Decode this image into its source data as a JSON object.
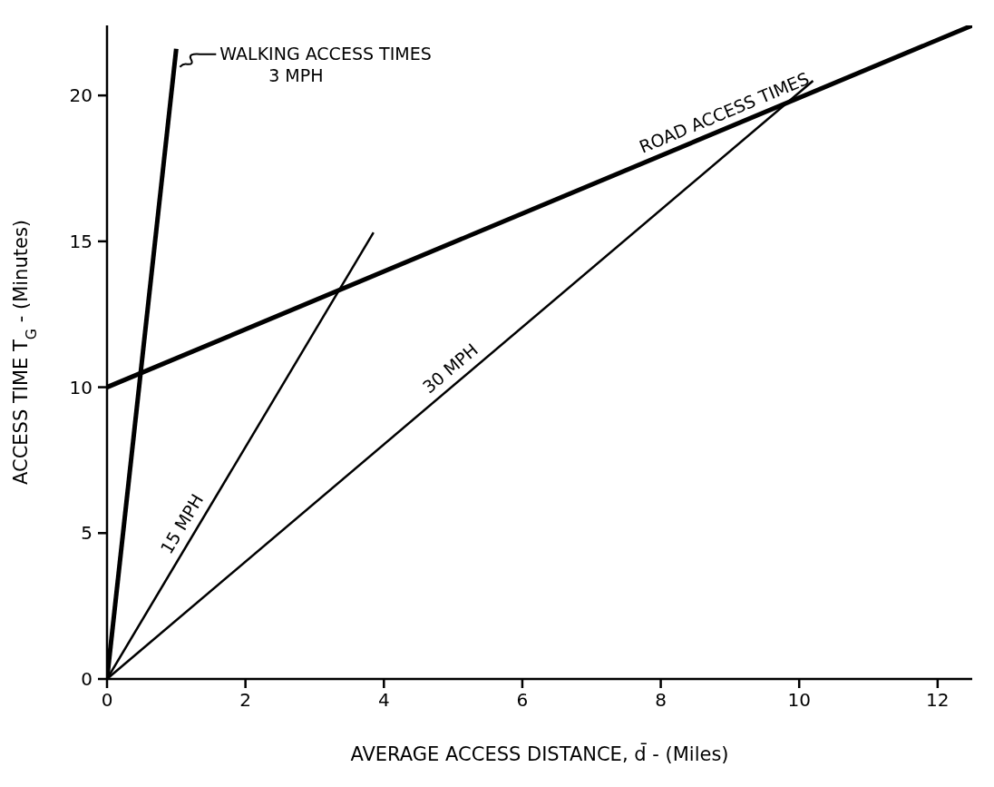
{
  "chart_data": {
    "type": "line",
    "xlabel": "AVERAGE ACCESS DISTANCE, d̄ - (Miles)",
    "ylabel": "ACCESS TIME T$_{G}$ - (Minutes)",
    "xlim": [
      0,
      12.5
    ],
    "ylim": [
      0,
      22.4
    ],
    "xticks": [
      0,
      2,
      4,
      6,
      8,
      10,
      12
    ],
    "yticks": [
      0,
      5,
      10,
      15,
      20
    ],
    "series": [
      {
        "name": "WALKING ACCESS TIMES\n3 MPH",
        "color": "#000000",
        "x": [
          0,
          1
        ],
        "values": [
          0,
          21.6
        ]
      },
      {
        "name": "15 MPH",
        "color": "#000000",
        "x": [
          0,
          3.85
        ],
        "values": [
          0,
          15.3
        ]
      },
      {
        "name": "30 MPH",
        "color": "#000000",
        "x": [
          0,
          10.2
        ],
        "values": [
          0,
          20.5
        ]
      },
      {
        "name": "ROAD ACCESS TIMES",
        "color": "#000000",
        "x": [
          0,
          12.5
        ],
        "values": [
          10,
          22.4
        ]
      }
    ]
  }
}
